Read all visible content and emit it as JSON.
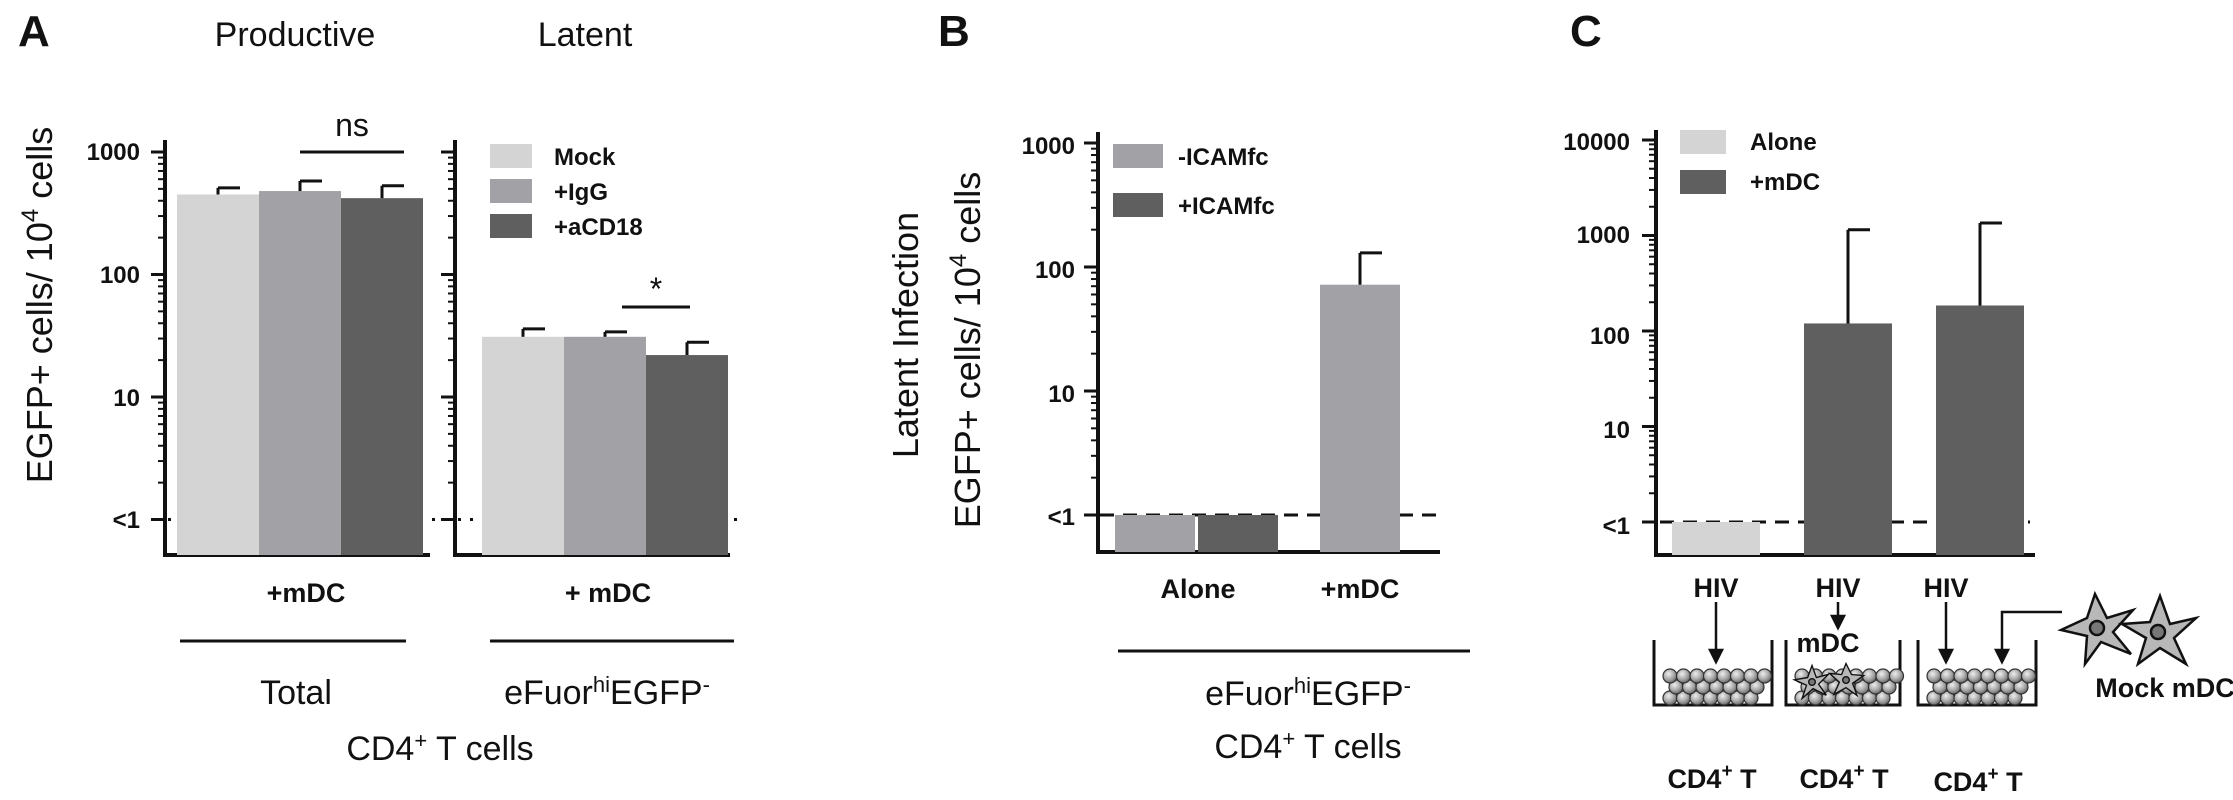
{
  "colors": {
    "light": "#d4d4d4",
    "mid": "#a2a2a6",
    "dark": "#5f5f5f",
    "axis": "#111111"
  },
  "chart_data": [
    {
      "panel": "A",
      "type": "bar",
      "log_scale": true,
      "ylim": [
        0.6,
        1000
      ],
      "ytick_labels": [
        "1000",
        "100",
        "10",
        "<1"
      ],
      "ytick_values": [
        1000,
        100,
        10,
        1
      ],
      "ylabel_parts": [
        "EGFP+ cells/ 10",
        "4",
        " cells"
      ],
      "dashed_baseline": 1,
      "groups": [
        {
          "header": "Productive",
          "category": "+mDC",
          "subgroup": "Total",
          "values": [
            450,
            480,
            420
          ],
          "errors": [
            510,
            580,
            530
          ],
          "significance": "ns"
        },
        {
          "header": "Latent",
          "category": "+ mDC",
          "subgroup_parts": [
            "eFuor",
            "hi",
            "EGFP",
            "-"
          ],
          "values": [
            31,
            31,
            22
          ],
          "errors": [
            36,
            34,
            28
          ],
          "significance": "*"
        }
      ],
      "series": [
        {
          "name": "Mock"
        },
        {
          "name": "+IgG"
        },
        {
          "name": "+aCD18"
        }
      ],
      "footer_parts": [
        "CD4",
        "+",
        " T cells"
      ]
    },
    {
      "panel": "B",
      "type": "bar",
      "log_scale": true,
      "ylim": [
        0.6,
        1000
      ],
      "ytick_labels": [
        "1000",
        "100",
        "10",
        "<1"
      ],
      "ytick_values": [
        1000,
        100,
        10,
        1
      ],
      "ylabel_line1": "Latent Infection",
      "ylabel_parts": [
        "EGFP+ cells/ 10",
        "4",
        " cells"
      ],
      "dashed_baseline": 1,
      "categories": [
        "Alone",
        "+mDC"
      ],
      "series": [
        {
          "name": "-ICAMfc",
          "values": [
            1,
            72
          ],
          "errors": [
            null,
            130
          ]
        },
        {
          "name": "+ICAMfc",
          "values": [
            1,
            null
          ],
          "errors": [
            null,
            null
          ]
        }
      ],
      "footer_line1_parts": [
        "eFuor",
        "hi",
        "EGFP",
        "-"
      ],
      "footer_line2_parts": [
        "CD4",
        "+",
        " T cells"
      ]
    },
    {
      "panel": "C",
      "type": "bar",
      "log_scale": true,
      "ylim": [
        0.6,
        10000
      ],
      "ytick_labels": [
        "10000",
        "1000",
        "100",
        "10",
        "<1"
      ],
      "ytick_values": [
        10000,
        1000,
        100,
        10,
        1
      ],
      "dashed_baseline": 1,
      "series": [
        {
          "name": "Alone"
        },
        {
          "name": "+mDC"
        }
      ],
      "bars": [
        {
          "series": "Alone",
          "value": 1,
          "error": null
        },
        {
          "series": "+mDC",
          "value": 120,
          "error": 1150
        },
        {
          "series": "+mDC",
          "value": 185,
          "error": 1350
        }
      ],
      "schematic": {
        "hiv": [
          "HIV",
          "HIV",
          "HIV"
        ],
        "mdc": "mDC",
        "mock": "Mock mDC",
        "cells": [
          {
            "label_parts": [
              "CD4",
              "+",
              " T"
            ]
          },
          {
            "label_parts": [
              "CD4",
              "+",
              " T"
            ]
          },
          {
            "label_parts": [
              "CD4",
              "+",
              " T"
            ]
          }
        ]
      }
    }
  ],
  "panel_letters": [
    "A",
    "B",
    "C"
  ]
}
